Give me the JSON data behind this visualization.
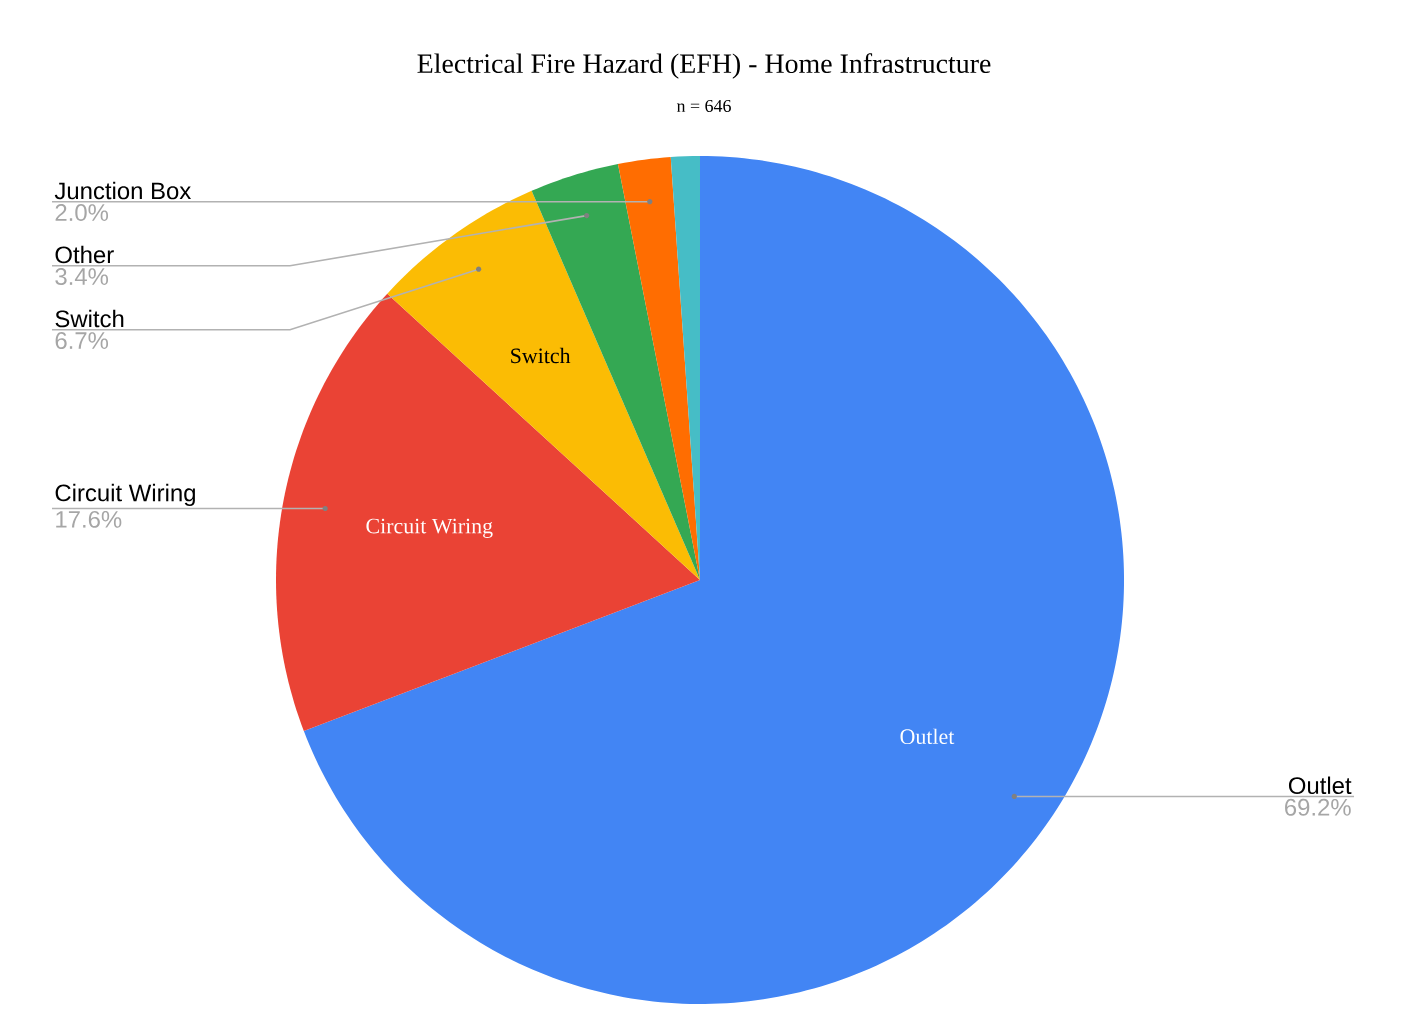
{
  "chart_data": {
    "type": "pie",
    "title": "Electrical Fire Hazard (EFH) - Home Infrastructure",
    "subtitle": "n = 646",
    "categories": [
      "Outlet",
      "Circuit Wiring",
      "Switch",
      "Other",
      "Junction Box",
      null
    ],
    "values": [
      69.2,
      17.6,
      6.7,
      3.4,
      2.0,
      1.1
    ],
    "value_labels": [
      "69.2%",
      "17.6%",
      "6.7%",
      "3.4%",
      "2.0%",
      null
    ],
    "colors": [
      "#4285f4",
      "#ea4335",
      "#fbbc04",
      "#34a853",
      "#ff6d01",
      "#46bdc6"
    ]
  }
}
